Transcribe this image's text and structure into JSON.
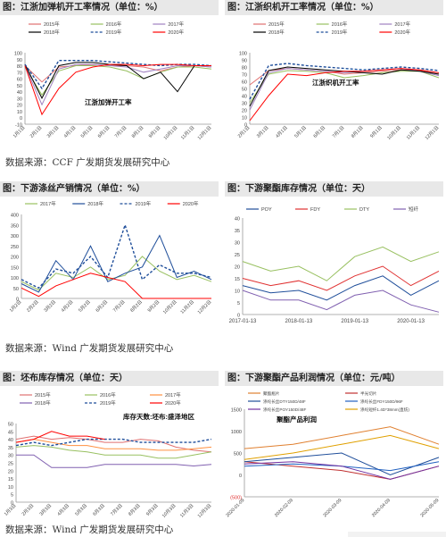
{
  "sources": {
    "row1": "数据来源：CCF 广发期货发展研究中心",
    "row2": "数据来源：Wind 广发期货发展研究中心",
    "row3": "数据来源：Wind 广发期货发展研究中心"
  },
  "colors": {
    "y2015": "#e07070",
    "y2016": "#98c060",
    "y2017": "#a080c0",
    "y2018": "#000000",
    "y2019": "#1f4e9a",
    "y2020": "#ff0000"
  },
  "chart_data": [
    {
      "id": "c1",
      "type": "line",
      "title": "图：江浙加弹机开工率情况（单位：%）",
      "annotation": "江浙加弹开工率",
      "ylim": [
        -10,
        100
      ],
      "yticks": [
        -10,
        0,
        10,
        20,
        30,
        40,
        50,
        60,
        70,
        80,
        90,
        100
      ],
      "categories": [
        "1月1日",
        "2月1日",
        "3月1日",
        "4月1日",
        "5月1日",
        "6月1日",
        "7月1日",
        "8月1日",
        "9月1日",
        "10月1日",
        "11月1日",
        "12月1日"
      ],
      "category_labels": [
        "1月1日",
        "2月1日",
        "3月1日",
        "4月1日",
        "5月1日",
        "6月1日",
        "7月1日",
        "8月1日",
        "9月1日",
        "10月1日",
        "11月1日",
        "12月1日"
      ],
      "series": [
        {
          "name": "2015年",
          "color": "#e07070",
          "values": [
            80,
            55,
            78,
            80,
            82,
            80,
            80,
            78,
            72,
            78,
            80,
            78
          ]
        },
        {
          "name": "2016年",
          "color": "#98c060",
          "values": [
            78,
            35,
            72,
            80,
            80,
            78,
            72,
            60,
            70,
            78,
            78,
            75
          ]
        },
        {
          "name": "2017年",
          "color": "#a080c0",
          "values": [
            80,
            20,
            75,
            82,
            82,
            80,
            78,
            70,
            75,
            80,
            80,
            78
          ]
        },
        {
          "name": "2018年",
          "color": "#000000",
          "values": [
            82,
            30,
            80,
            85,
            85,
            82,
            80,
            60,
            70,
            40,
            80,
            80
          ]
        },
        {
          "name": "2019年",
          "color": "#1f4e9a",
          "dash": true,
          "values": [
            82,
            45,
            88,
            88,
            88,
            86,
            84,
            82,
            80,
            82,
            82,
            80
          ]
        },
        {
          "name": "2020年",
          "color": "#ff0000",
          "values": [
            80,
            5,
            45,
            70,
            78,
            82,
            82,
            80,
            82,
            82,
            80,
            80
          ]
        }
      ]
    },
    {
      "id": "c2",
      "type": "line",
      "title": "图：江浙织机开工率情况（单位：%）",
      "annotation": "江浙织机开工率",
      "ylim": [
        0,
        100
      ],
      "yticks": [
        0,
        10,
        20,
        30,
        40,
        50,
        60,
        70,
        80,
        90,
        100
      ],
      "categories": [
        "2月1日",
        "3月1日",
        "4月1日",
        "5月1日",
        "6月1日",
        "7月1日",
        "8月1日",
        "9月1日",
        "10月1日",
        "11月1日",
        "12月1日"
      ],
      "category_labels": [
        "2月1日",
        "3月1日",
        "4月1日",
        "5月1日",
        "6月1日",
        "7月1日",
        "8月1日",
        "9月1日",
        "10月1日",
        "11月1日",
        "12月1日"
      ],
      "series": [
        {
          "name": "2015年",
          "color": "#e07070",
          "values": [
            55,
            75,
            78,
            76,
            74,
            70,
            72,
            74,
            76,
            75,
            70
          ]
        },
        {
          "name": "2016年",
          "color": "#98c060",
          "values": [
            30,
            70,
            75,
            74,
            72,
            65,
            68,
            72,
            74,
            74,
            65
          ]
        },
        {
          "name": "2017年",
          "color": "#a080c0",
          "values": [
            20,
            72,
            78,
            76,
            74,
            72,
            74,
            76,
            78,
            74,
            68
          ]
        },
        {
          "name": "2018年",
          "color": "#000000",
          "values": [
            25,
            75,
            80,
            78,
            76,
            74,
            72,
            70,
            76,
            74,
            70
          ]
        },
        {
          "name": "2019年",
          "color": "#1f4e9a",
          "dash": true,
          "values": [
            35,
            82,
            85,
            82,
            80,
            78,
            76,
            78,
            80,
            78,
            75
          ]
        },
        {
          "name": "2020年",
          "color": "#ff0000",
          "values": [
            5,
            40,
            70,
            68,
            72,
            74,
            74,
            76,
            78,
            76,
            72
          ]
        }
      ]
    },
    {
      "id": "c3",
      "type": "line",
      "title": "图：下游涤丝产销情况（单位：%）",
      "ylim": [
        0,
        400
      ],
      "yticks": [
        0,
        50,
        100,
        150,
        200,
        250,
        300,
        350,
        400
      ],
      "categories": [
        "1月2日",
        "2月2日",
        "3月2日",
        "4月2日",
        "5月2日",
        "6月2日",
        "7月2日",
        "8月2日",
        "9月2日",
        "10月2日",
        "11月2日",
        "12月2日"
      ],
      "category_labels": [
        "1月2日",
        "2月2日",
        "3月2日",
        "4月2日",
        "5月2日",
        "6月2日",
        "7月2日",
        "8月2日",
        "9月2日",
        "10月2日",
        "11月2日",
        "12月2日"
      ],
      "series": [
        {
          "name": "2017年",
          "color": "#98c060",
          "values": [
            80,
            40,
            120,
            100,
            150,
            90,
            110,
            200,
            130,
            90,
            110,
            80
          ]
        },
        {
          "name": "2018年",
          "color": "#1f4e9a",
          "values": [
            70,
            30,
            180,
            90,
            250,
            80,
            120,
            150,
            300,
            100,
            130,
            90
          ]
        },
        {
          "name": "2019年",
          "color": "#1f4e9a",
          "dash": true,
          "values": [
            90,
            50,
            140,
            120,
            200,
            100,
            350,
            90,
            160,
            120,
            120,
            100
          ]
        },
        {
          "name": "2020年",
          "color": "#ff0000",
          "values": [
            50,
            10,
            60,
            90,
            120,
            100,
            80,
            0,
            0,
            0,
            0,
            0
          ]
        }
      ]
    },
    {
      "id": "c4",
      "type": "line",
      "title": "图：下游聚酯库存情况（单位：天）",
      "ylim": [
        0,
        40
      ],
      "yticks": [
        0,
        5,
        10,
        15,
        20,
        25,
        30,
        35,
        40
      ],
      "categories": [
        "2017-01-13",
        "2017-07",
        "2018-01-13",
        "2018-07",
        "2019-01-13",
        "2019-07",
        "2020-01-13",
        "2020-04"
      ],
      "category_labels": [
        "2017-01-13",
        "",
        "2018-01-13",
        "",
        "2019-01-13",
        "",
        "2020-01-13",
        ""
      ],
      "series": [
        {
          "name": "POY",
          "color": "#1f4e9a",
          "values": [
            12,
            9,
            10,
            6,
            12,
            16,
            8,
            14
          ]
        },
        {
          "name": "FDY",
          "color": "#e03030",
          "values": [
            15,
            12,
            14,
            10,
            16,
            20,
            12,
            18
          ]
        },
        {
          "name": "DTY",
          "color": "#98c060",
          "values": [
            22,
            18,
            20,
            14,
            24,
            28,
            22,
            26
          ]
        },
        {
          "name": "短纤",
          "color": "#8060b0",
          "values": [
            10,
            6,
            6,
            2,
            8,
            10,
            4,
            1
          ]
        }
      ]
    },
    {
      "id": "c5",
      "type": "line",
      "title": "图：坯布库存情况（单位：天）",
      "annotation": "库存天数:坯布:盛泽地区",
      "ylim": [
        0,
        50
      ],
      "yticks": [
        0,
        5,
        10,
        15,
        20,
        25,
        30,
        35,
        40,
        45,
        50
      ],
      "categories": [
        "1月3日",
        "2月3日",
        "3月3日",
        "4月3日",
        "5月3日",
        "6月3日",
        "7月3日",
        "8月3日",
        "9月3日",
        "10月3日",
        "11月3日",
        "12月3日"
      ],
      "category_labels": [
        "1月3日",
        "2月3日",
        "3月3日",
        "4月3日",
        "5月3日",
        "6月3日",
        "7月3日",
        "8月3日",
        "9月3日",
        "10月3日",
        "11月3日",
        "12月3日"
      ],
      "series": [
        {
          "name": "2015年",
          "color": "#e07070",
          "values": [
            40,
            42,
            40,
            41,
            40,
            38,
            38,
            40,
            39,
            35,
            33,
            32
          ]
        },
        {
          "name": "2016年",
          "color": "#98c060",
          "values": [
            35,
            36,
            35,
            33,
            32,
            30,
            30,
            30,
            28,
            28,
            30,
            32
          ]
        },
        {
          "name": "2017年",
          "color": "#ff9040",
          "values": [
            38,
            40,
            38,
            36,
            36,
            34,
            34,
            34,
            33,
            33,
            34,
            35
          ]
        },
        {
          "name": "2018年",
          "color": "#8060b0",
          "values": [
            30,
            30,
            22,
            22,
            22,
            24,
            24,
            24,
            24,
            24,
            23,
            24
          ]
        },
        {
          "name": "2019年",
          "color": "#1f4e9a",
          "dash": true,
          "values": [
            36,
            38,
            36,
            38,
            40,
            40,
            40,
            38,
            38,
            38,
            38,
            40
          ]
        },
        {
          "name": "2020年",
          "color": "#ff0000",
          "values": [
            38,
            40,
            45,
            42,
            42,
            40,
            null,
            null,
            null,
            null,
            null,
            null
          ]
        }
      ]
    },
    {
      "id": "c6",
      "type": "line",
      "title": "图：下游聚酯产品利润情况（单位：元/吨）",
      "annotation": "聚酯产品利润",
      "ylim": [
        -500,
        1500
      ],
      "yticks": [
        -500,
        0,
        500,
        1000,
        1500
      ],
      "ytick_labels": [
        "(500)",
        "0",
        "500",
        "1000",
        "1500"
      ],
      "categories": [
        "2020-01-09",
        "2020-02-09",
        "2020-03-09",
        "2020-04-09",
        "2020-05-09"
      ],
      "category_labels": [
        "2020-01-09",
        "2020-02-09",
        "2020-03-09",
        "2020-04-09",
        "2020-05-09"
      ],
      "series": [
        {
          "name": "聚酯瓶片",
          "color": "#e08030",
          "values": [
            600,
            700,
            900,
            1100,
            700
          ]
        },
        {
          "name": "半光切片",
          "color": "#c03030",
          "values": [
            300,
            200,
            100,
            -100,
            200
          ]
        },
        {
          "name": "涤纶长丝DTY150D/48F",
          "color": "#1f4e9a",
          "values": [
            300,
            400,
            500,
            0,
            400
          ]
        },
        {
          "name": "涤纶长丝FDY150D/96F",
          "color": "#2060c0",
          "values": [
            200,
            250,
            200,
            100,
            300
          ]
        },
        {
          "name": "涤纶长丝POY150D/48F",
          "color": "#7030a0",
          "values": [
            250,
            300,
            200,
            -100,
            200
          ]
        },
        {
          "name": "涤纶短纤1.4D*38mm(直纺)",
          "color": "#e0a000",
          "values": [
            350,
            500,
            700,
            900,
            600
          ]
        }
      ]
    }
  ]
}
